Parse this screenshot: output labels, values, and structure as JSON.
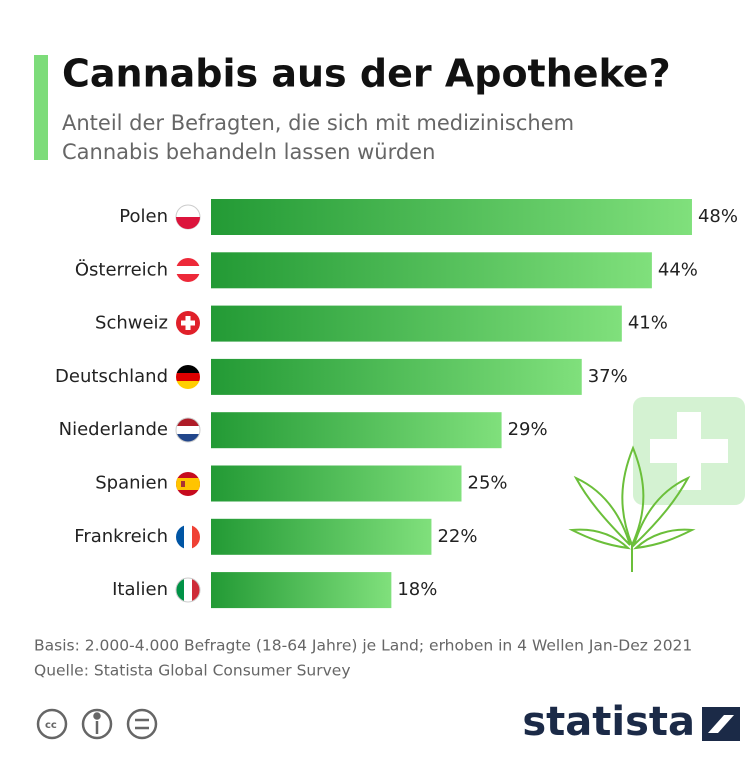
{
  "chart_data": {
    "type": "bar",
    "orientation": "horizontal",
    "title": "Cannabis aus der Apotheke?",
    "subtitle": [
      "Anteil der Befragten, die sich mit medizinischem",
      "Cannabis behandeln lassen würden"
    ],
    "categories": [
      "Polen",
      "Österreich",
      "Schweiz",
      "Deutschland",
      "Niederlande",
      "Spanien",
      "Frankreich",
      "Italien"
    ],
    "values": [
      48,
      44,
      41,
      37,
      29,
      25,
      22,
      18
    ],
    "value_labels": [
      "48%",
      "44%",
      "41%",
      "37%",
      "29%",
      "25%",
      "22%",
      "18%"
    ],
    "color": [
      "#239a35",
      "#80e07c"
    ],
    "notes": [
      "Basis: 2.000-4.000 Befragte (18-64 Jahre) je Land; erhoben in 4 Wellen Jan-Dez 2021",
      "Quelle: Statista Global Consumer Survey"
    ],
    "brand": "statista"
  }
}
